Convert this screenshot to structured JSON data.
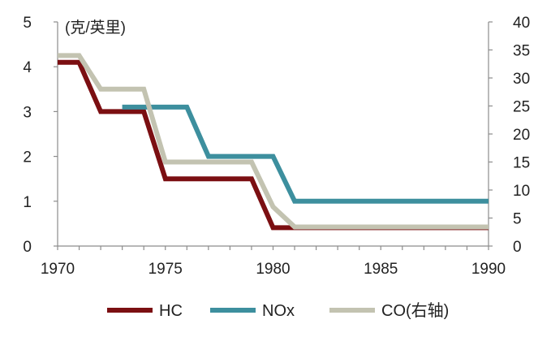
{
  "chart_data": {
    "type": "line",
    "unit_label": "(克/英里)",
    "x_ticks": [
      "1970",
      "1975",
      "1980",
      "1985",
      "1990"
    ],
    "y_left_ticks": [
      "0",
      "1",
      "2",
      "3",
      "4",
      "5"
    ],
    "y_right_ticks": [
      "0",
      "5",
      "10",
      "15",
      "20",
      "25",
      "30",
      "35",
      "40"
    ],
    "xlim": [
      1970,
      1990
    ],
    "ylim_left": [
      0,
      5
    ],
    "ylim_right": [
      0,
      40
    ],
    "step": true,
    "series": [
      {
        "name": "HC",
        "axis": "left",
        "color": "#7b0f12",
        "points": [
          [
            1970,
            4.1
          ],
          [
            1971,
            4.1
          ],
          [
            1972,
            3.0
          ],
          [
            1974,
            3.0
          ],
          [
            1975,
            1.5
          ],
          [
            1979,
            1.5
          ],
          [
            1980,
            0.41
          ],
          [
            1981,
            0.41
          ],
          [
            1990,
            0.41
          ]
        ]
      },
      {
        "name": "NOx",
        "axis": "left",
        "color": "#3d8f9e",
        "points": [
          [
            1973,
            3.1
          ],
          [
            1976,
            3.1
          ],
          [
            1977,
            2.0
          ],
          [
            1980,
            2.0
          ],
          [
            1981,
            1.0
          ],
          [
            1990,
            1.0
          ]
        ]
      },
      {
        "name": "CO(右轴)",
        "axis": "right",
        "color": "#c3c3b1",
        "points": [
          [
            1970,
            34
          ],
          [
            1971,
            34
          ],
          [
            1972,
            28
          ],
          [
            1974,
            28
          ],
          [
            1975,
            15
          ],
          [
            1979,
            15
          ],
          [
            1980,
            7
          ],
          [
            1981,
            3.4
          ],
          [
            1990,
            3.4
          ]
        ]
      }
    ],
    "legend_position": "bottom",
    "grid": false
  }
}
